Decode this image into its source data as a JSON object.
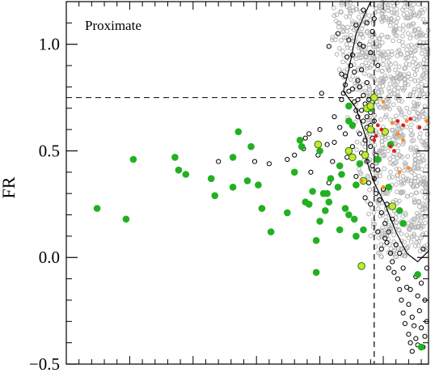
{
  "chart_data": {
    "type": "scatter",
    "title": "",
    "panel_label": "Proximate",
    "xlabel": "",
    "ylabel": "FR",
    "ylim": [
      -0.5,
      1.2
    ],
    "xlim": [
      0,
      100
    ],
    "yticks": [
      -0.5,
      0.0,
      0.5,
      1.0
    ],
    "ytick_labels": [
      "−0.5",
      "0.0",
      "0.5",
      "1.0"
    ],
    "reference_lines": {
      "horizontal_y": 0.75,
      "vertical_x": 85
    },
    "colors": {
      "background_points": "#b3b3b3",
      "open_points": "#000000",
      "green_points": "#22b022",
      "yellowgreen_points": "#c8e632",
      "orange_points": "#ff8c1a",
      "red_points": "#e61a1a"
    },
    "series": [
      {
        "name": "",
        "marker": "filled",
        "color_key": "green_points",
        "points": [
          [
            8.5,
            0.23
          ],
          [
            16.5,
            0.18
          ],
          [
            18.5,
            0.46
          ],
          [
            30,
            0.47
          ],
          [
            31,
            0.41
          ],
          [
            33,
            0.39
          ],
          [
            40,
            0.37
          ],
          [
            41,
            0.29
          ],
          [
            46,
            0.33
          ],
          [
            46,
            0.47
          ],
          [
            47.5,
            0.59
          ],
          [
            50,
            0.36
          ],
          [
            51,
            0.52
          ],
          [
            53,
            0.34
          ],
          [
            54,
            0.23
          ],
          [
            56.5,
            0.12
          ],
          [
            61,
            0.21
          ],
          [
            63,
            0.4
          ],
          [
            64.5,
            0.55
          ],
          [
            65,
            0.52
          ],
          [
            66,
            0.26
          ],
          [
            67,
            0.25
          ],
          [
            68,
            0.31
          ],
          [
            69,
            0.08
          ],
          [
            70,
            0.17
          ],
          [
            70,
            0.5
          ],
          [
            71,
            0.3
          ],
          [
            71.5,
            0.22
          ],
          [
            72,
            0.3
          ],
          [
            72.5,
            0.26
          ],
          [
            73,
            0.37
          ],
          [
            75,
            0.33
          ],
          [
            75.5,
            0.13
          ],
          [
            75.5,
            0.43
          ],
          [
            76,
            0.39
          ],
          [
            77,
            0.23
          ],
          [
            78,
            0.2
          ],
          [
            78,
            0.64
          ],
          [
            78,
            0.71
          ],
          [
            79,
            0.62
          ],
          [
            79.5,
            0.18
          ],
          [
            80,
            0.34
          ],
          [
            80,
            0.1
          ],
          [
            81,
            0.44
          ],
          [
            82,
            0.13
          ],
          [
            84,
            0.7
          ],
          [
            86,
            0.46
          ],
          [
            89,
            0.33
          ],
          [
            89.5,
            0.53
          ],
          [
            92,
            0.22
          ],
          [
            93,
            0.16
          ],
          [
            97,
            -0.08
          ],
          [
            98,
            -0.42
          ],
          [
            69,
            -0.07
          ]
        ]
      },
      {
        "name": "",
        "marker": "filled",
        "color_key": "yellowgreen_points",
        "points": [
          [
            69.5,
            0.53
          ],
          [
            78,
            0.5
          ],
          [
            79,
            0.47
          ],
          [
            82.5,
            0.48
          ],
          [
            83,
            0.7
          ],
          [
            84,
            0.71
          ],
          [
            85,
            0.75
          ],
          [
            84,
            0.6
          ],
          [
            82,
            0.36
          ],
          [
            88,
            0.59
          ],
          [
            90,
            0.24
          ],
          [
            81.5,
            -0.04
          ]
        ]
      },
      {
        "name": "",
        "marker": "filled-small",
        "color_key": "orange_points",
        "points": [
          [
            87.5,
            0.73
          ],
          [
            90,
            0.63
          ],
          [
            91.5,
            0.58
          ],
          [
            93,
            0.55
          ],
          [
            94,
            0.64
          ],
          [
            94.5,
            0.42
          ],
          [
            92,
            0.4
          ],
          [
            99.5,
            0.64
          ],
          [
            81.5,
            0.36
          ],
          [
            87.5,
            0.33
          ]
        ]
      },
      {
        "name": "",
        "marker": "filled-small",
        "color_key": "red_points",
        "points": [
          [
            85.5,
            0.57
          ],
          [
            86,
            0.62
          ],
          [
            87,
            0.6
          ],
          [
            89.5,
            0.52
          ],
          [
            90.5,
            0.5
          ],
          [
            91.5,
            0.64
          ],
          [
            93,
            0.62
          ],
          [
            95,
            0.65
          ],
          [
            97.5,
            0.61
          ],
          [
            85,
            0.55
          ]
        ]
      },
      {
        "name": "",
        "marker": "open",
        "color_key": "open_points",
        "points": [
          [
            42,
            0.45
          ],
          [
            52,
            0.45
          ],
          [
            56,
            0.44
          ],
          [
            63,
            0.48
          ],
          [
            65.5,
            0.51
          ],
          [
            66,
            0.56
          ],
          [
            67.5,
            0.4
          ],
          [
            69.5,
            0.48
          ],
          [
            70,
            0.6
          ],
          [
            72.5,
            0.35
          ],
          [
            72,
            0.53
          ],
          [
            74,
            0.54
          ],
          [
            74,
            0.66
          ],
          [
            75.5,
            0.61
          ],
          [
            76,
            0.74
          ],
          [
            76.5,
            0.77
          ],
          [
            77,
            0.85
          ],
          [
            77.5,
            0.94
          ],
          [
            78,
            1.02
          ],
          [
            78.5,
            0.9
          ],
          [
            79,
            0.79
          ],
          [
            79.5,
            0.73
          ],
          [
            80,
            0.69
          ],
          [
            80.5,
            0.66
          ],
          [
            80.5,
            0.74
          ],
          [
            81,
            0.8
          ],
          [
            81,
            0.58
          ],
          [
            81.5,
            0.69
          ],
          [
            82,
            0.76
          ],
          [
            82,
            0.64
          ],
          [
            82.5,
            0.72
          ],
          [
            82.5,
            0.55
          ],
          [
            83,
            0.66
          ],
          [
            83,
            0.61
          ],
          [
            83.5,
            0.74
          ],
          [
            84,
            0.68
          ],
          [
            84,
            0.62
          ],
          [
            84,
            0.52
          ],
          [
            84.5,
            0.56
          ],
          [
            84.5,
            0.43
          ],
          [
            85,
            0.64
          ],
          [
            85,
            0.37
          ],
          [
            85.5,
            0.48
          ],
          [
            85.5,
            0.3
          ],
          [
            86,
            0.41
          ],
          [
            86.5,
            0.27
          ],
          [
            87,
            0.21
          ],
          [
            87.5,
            0.32
          ],
          [
            88,
            0.16
          ],
          [
            88.5,
            0.25
          ],
          [
            88.5,
            0.07
          ],
          [
            89,
            0.12
          ],
          [
            89.5,
            0.02
          ],
          [
            90,
            -0.02
          ],
          [
            90,
            0.18
          ],
          [
            90.5,
            -0.07
          ],
          [
            91,
            0.06
          ],
          [
            91.5,
            -0.1
          ],
          [
            92,
            -0.15
          ],
          [
            92,
            0.02
          ],
          [
            92.5,
            -0.2
          ],
          [
            93,
            -0.05
          ],
          [
            93,
            -0.26
          ],
          [
            93.5,
            -0.31
          ],
          [
            94,
            -0.14
          ],
          [
            94.5,
            -0.36
          ],
          [
            94.5,
            -0.22
          ],
          [
            95,
            -0.4
          ],
          [
            95.5,
            -0.28
          ],
          [
            95.5,
            -0.44
          ],
          [
            96,
            -0.32
          ],
          [
            96.5,
            -0.38
          ],
          [
            97,
            -0.18
          ],
          [
            97.5,
            -0.25
          ],
          [
            98,
            -0.33
          ],
          [
            98,
            -0.12
          ],
          [
            98.5,
            -0.42
          ],
          [
            99,
            -0.2
          ],
          [
            99.5,
            -0.05
          ],
          [
            99.5,
            -0.3
          ],
          [
            96.5,
            -0.09
          ],
          [
            95,
            -0.15
          ],
          [
            97,
            -0.41
          ],
          [
            99,
            -0.37
          ],
          [
            98.5,
            0.04
          ],
          [
            72.5,
            0.99
          ],
          [
            75,
            1.05
          ],
          [
            76,
            0.86
          ],
          [
            77,
            0.81
          ],
          [
            78,
            0.78
          ],
          [
            79,
            0.95
          ],
          [
            79.5,
            0.87
          ],
          [
            80.5,
            0.83
          ],
          [
            81.5,
            0.88
          ],
          [
            82,
            0.99
          ],
          [
            83,
            0.82
          ],
          [
            86,
            0.9
          ],
          [
            84,
            0.96
          ],
          [
            81,
            1.0
          ],
          [
            80,
            1.09
          ],
          [
            82,
            1.16
          ],
          [
            84.5,
            1.06
          ],
          [
            85,
            1.12
          ],
          [
            83,
            1.1
          ],
          [
            70.5,
            0.77
          ],
          [
            67,
            0.58
          ],
          [
            61,
            0.46
          ],
          [
            73.5,
            0.45
          ],
          [
            77,
            0.58
          ],
          [
            77.5,
            0.47
          ],
          [
            79,
            0.52
          ],
          [
            80,
            0.38
          ],
          [
            81.5,
            0.49
          ],
          [
            83,
            0.45
          ],
          [
            83.5,
            0.35
          ],
          [
            82.5,
            0.28
          ],
          [
            84,
            0.25
          ],
          [
            86,
            0.12
          ],
          [
            87,
            0.04
          ],
          [
            89,
            -0.05
          ],
          [
            88,
            0.09
          ]
        ]
      }
    ],
    "background_population": {
      "color_key": "background_points",
      "x_range": [
        73,
        100
      ],
      "y_range": [
        0.0,
        1.2
      ],
      "count": 900
    },
    "contour": [
      [
        84,
        1.2
      ],
      [
        80,
        1.05
      ],
      [
        78,
        0.88
      ],
      [
        76.5,
        0.78
      ],
      [
        80,
        0.7
      ],
      [
        83,
        0.55
      ],
      [
        83,
        0.45
      ],
      [
        85,
        0.35
      ],
      [
        88,
        0.25
      ],
      [
        91,
        0.12
      ],
      [
        94,
        0.02
      ],
      [
        97,
        -0.02
      ],
      [
        100,
        0.03
      ],
      [
        100,
        1.2
      ]
    ]
  }
}
